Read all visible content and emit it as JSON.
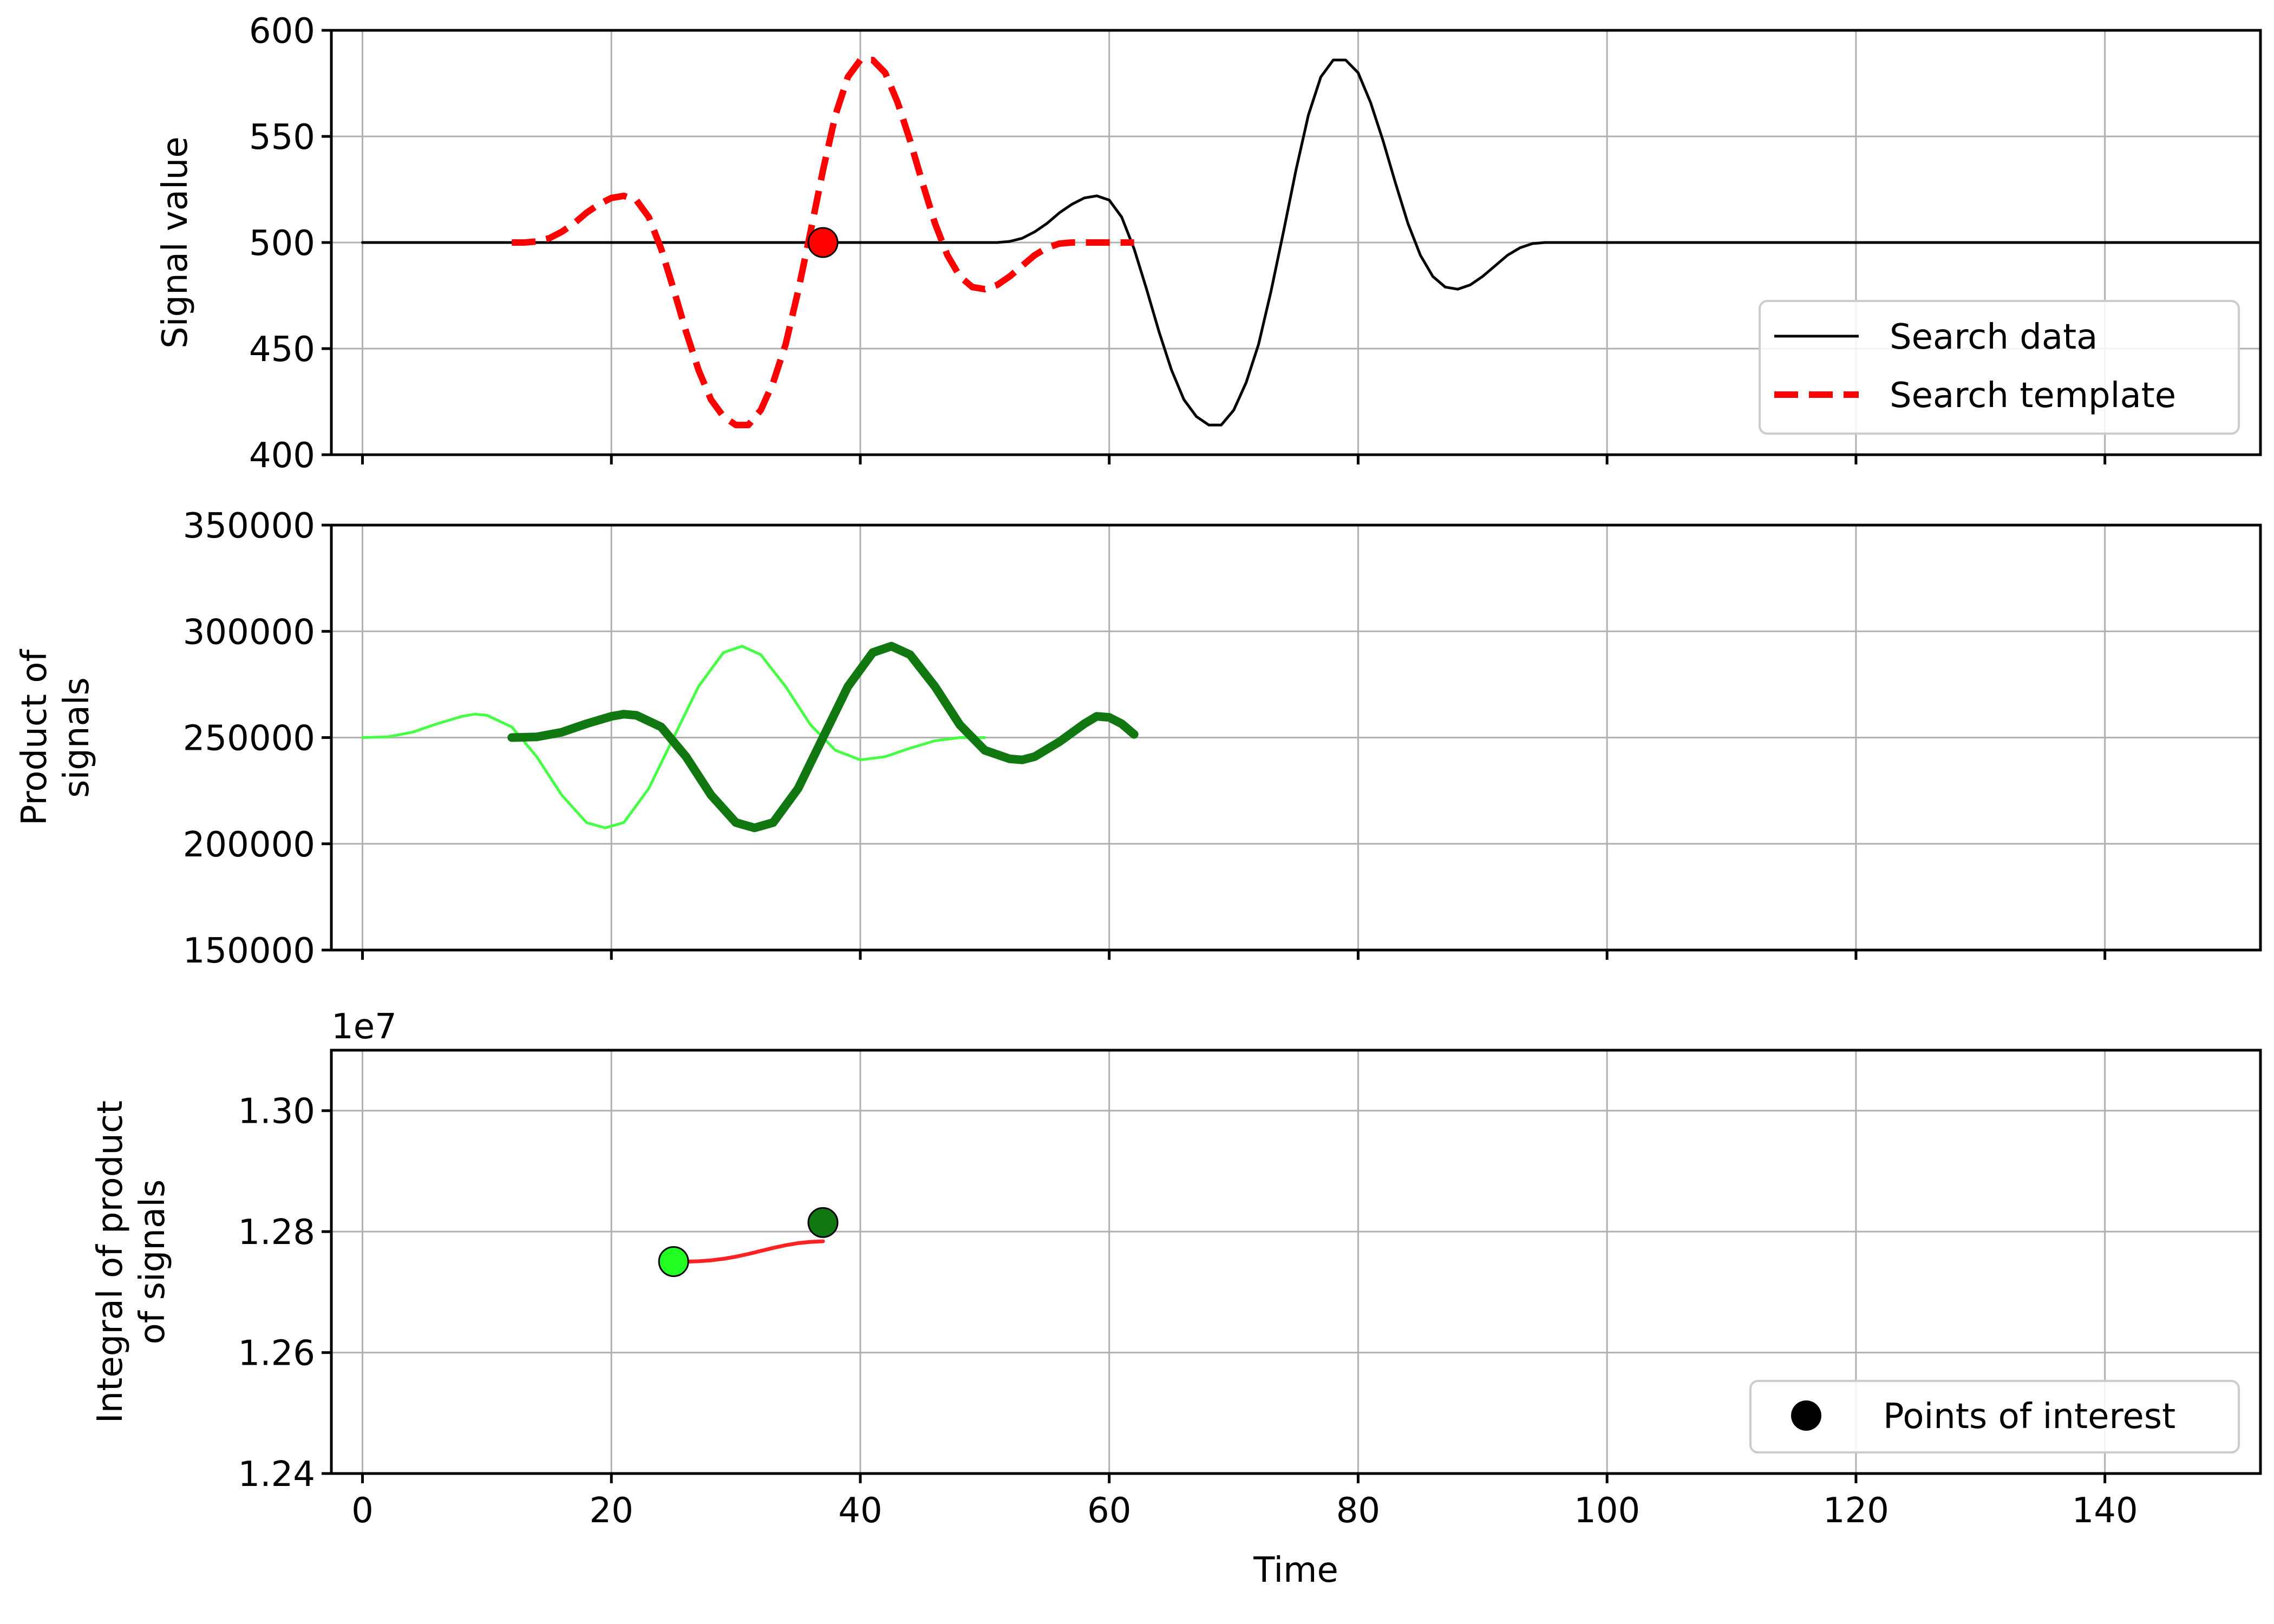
{
  "chart_data": [
    {
      "type": "line",
      "ylabel": "Signal value",
      "xlim": [
        -2.5,
        152.5
      ],
      "ylim": [
        400,
        600
      ],
      "xticks": [
        0,
        20,
        40,
        60,
        80,
        100,
        120,
        140
      ],
      "yticks": [
        400,
        450,
        500,
        550,
        600
      ],
      "grid": true,
      "legend": "lower-right",
      "series": [
        {
          "name": "Search data",
          "color": "#000000",
          "style": "solid",
          "x": [
            0,
            50,
            51,
            52,
            53,
            54,
            55,
            56,
            57,
            58,
            59,
            60,
            61,
            62,
            63,
            64,
            65,
            66,
            67,
            68,
            69,
            70,
            71,
            72,
            73,
            74,
            75,
            76,
            77,
            78,
            79,
            80,
            81,
            82,
            83,
            84,
            85,
            86,
            87,
            88,
            89,
            90,
            91,
            92,
            93,
            94,
            95,
            96,
            97,
            98,
            99,
            100,
            152.5
          ],
          "y": [
            500,
            500,
            500,
            500.5,
            502,
            505,
            509,
            514,
            518,
            521,
            522,
            520,
            512,
            497,
            478,
            458,
            440,
            426,
            418,
            414,
            414,
            421,
            434,
            452,
            477,
            505,
            534,
            560,
            578,
            586,
            586,
            580,
            566,
            548,
            528,
            509,
            494,
            484,
            479,
            478,
            480,
            484,
            489,
            494,
            497.5,
            499.5,
            500,
            500,
            500,
            500,
            500,
            500,
            500
          ]
        },
        {
          "name": "Search template",
          "color": "#ff0000",
          "style": "dashed",
          "x": [
            12,
            13,
            14,
            15,
            16,
            17,
            18,
            19,
            20,
            21,
            22,
            23,
            24,
            25,
            26,
            27,
            28,
            29,
            30,
            31,
            32,
            33,
            34,
            35,
            36,
            37,
            38,
            39,
            40,
            41,
            42,
            43,
            44,
            45,
            46,
            47,
            48,
            49,
            50,
            51,
            52,
            53,
            54,
            55,
            56,
            57,
            58,
            59,
            60,
            61,
            62
          ],
          "y": [
            500,
            500,
            500.5,
            502,
            505,
            509,
            514,
            518,
            521,
            522,
            520,
            512,
            497,
            478,
            458,
            440,
            426,
            418,
            414,
            414,
            421,
            434,
            452,
            477,
            505,
            534,
            560,
            578,
            586,
            586,
            580,
            566,
            548,
            528,
            509,
            494,
            484,
            479,
            478,
            480,
            484,
            489,
            494,
            497.5,
            499.5,
            500,
            500,
            500,
            500,
            500,
            500
          ]
        }
      ],
      "markers": [
        {
          "x": 37,
          "y": 500,
          "color": "#ff0000"
        }
      ]
    },
    {
      "type": "line",
      "ylabel": "Product of signals",
      "ylabel_lines": [
        "Product of",
        "signals"
      ],
      "xlim": [
        -2.5,
        152.5
      ],
      "ylim": [
        150000,
        350000
      ],
      "xticks": [
        0,
        20,
        40,
        60,
        80,
        100,
        120,
        140
      ],
      "yticks": [
        150000,
        200000,
        250000,
        300000,
        350000
      ],
      "grid": true,
      "series": [
        {
          "color": "#44ff44",
          "width": "thin",
          "x": [
            0,
            2,
            4,
            6,
            8,
            9,
            10,
            12,
            14,
            16,
            18,
            19.5,
            21,
            23,
            25,
            27,
            29,
            30.5,
            32,
            34,
            36,
            38,
            40,
            42,
            44,
            46,
            48,
            50
          ],
          "y": [
            250000,
            250300,
            252500,
            256500,
            260000,
            261000,
            260500,
            255000,
            241000,
            223000,
            210000,
            207500,
            210000,
            226000,
            250000,
            274000,
            290000,
            293000,
            289000,
            274000,
            256000,
            244000,
            239500,
            241000,
            245000,
            248500,
            250000,
            250000
          ]
        },
        {
          "color": "#117711",
          "width": "thick",
          "x": [
            12,
            14,
            16,
            18,
            20,
            21,
            22,
            24,
            26,
            28,
            30,
            31.5,
            33,
            35,
            37,
            39,
            41,
            42.5,
            44,
            46,
            48,
            50,
            52,
            53,
            54,
            56,
            58,
            59,
            60,
            61,
            62
          ],
          "y": [
            250000,
            250300,
            252500,
            256500,
            260000,
            261000,
            260500,
            255000,
            241000,
            223000,
            210000,
            207500,
            210000,
            226000,
            250000,
            274000,
            290000,
            293000,
            289000,
            274000,
            256000,
            244000,
            240000,
            239500,
            241000,
            248000,
            256500,
            260000,
            259500,
            256500,
            251500
          ]
        }
      ]
    },
    {
      "type": "line",
      "ylabel": "Integral of product of signals",
      "ylabel_lines": [
        "Integral of product",
        "of signals"
      ],
      "offset_text": "1e7",
      "scale": 10000000,
      "xlabel": "Time",
      "xlim": [
        -2.5,
        152.5
      ],
      "ylim": [
        12400000,
        13100000
      ],
      "xticks": [
        0,
        20,
        40,
        60,
        80,
        100,
        120,
        140
      ],
      "yticks": [
        12400000,
        12600000,
        12800000,
        13000000
      ],
      "ytick_labels": [
        "1.24",
        "1.26",
        "1.28",
        "1.30"
      ],
      "grid": true,
      "legend": "lower-right",
      "series": [
        {
          "color": "#ff2222",
          "x": [
            25,
            26,
            27,
            28,
            29,
            30,
            31,
            32,
            33,
            34,
            35,
            36,
            37
          ],
          "y": [
            12750500,
            12750400,
            12751000,
            12752500,
            12755000,
            12758500,
            12763000,
            12768000,
            12773000,
            12777500,
            12781000,
            12783000,
            12784000
          ]
        }
      ],
      "markers": [
        {
          "x": 25,
          "y": 12750500,
          "color": "#22ff22"
        },
        {
          "x": 37,
          "y": 12815000,
          "color": "#117711"
        }
      ],
      "legend_entries": [
        {
          "label": "Points of interest",
          "color": "#000000"
        }
      ]
    }
  ]
}
